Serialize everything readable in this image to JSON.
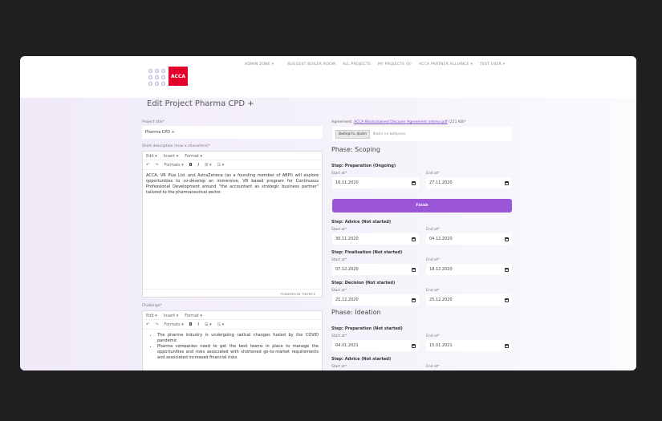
{
  "nav": [
    "ADMIN ZONE ▾",
    "SUGGEST BOILER ROOM",
    "ALL PROJECTS",
    "MY PROJECTS (6)",
    "ACCA PARTNER ALLIANCE ▾",
    "TEST USER ▾"
  ],
  "logo": "ACCA",
  "page_title": "Edit Project Pharma CPD +",
  "project_title_label": "Project title*",
  "project_title_value": "Pharma CPD +",
  "short_desc_label": "Short description (max x characters)*",
  "editor_menu": [
    "Edit ▾",
    "Insert ▾",
    "Format ▾"
  ],
  "editor_tools": {
    "undo": "↶",
    "redo": "↷",
    "formats": "Formats ▾",
    "bold": "B",
    "italic": "I",
    "bullets": "☰ ▾",
    "numbers": "☷ ▾"
  },
  "short_desc_text": "ACCA, VR Plus Ltd. and AstraZeneca (as a founding member of ABPI) will explore opportunities to co-develop an immersive, VR based program for Continuous Professional Development around \"the accountant as strategic business partner\" tailored to the pharmaceutical sector.",
  "powered_by": "POWERED BY TINYMCE",
  "challenge_label": "Challenge*",
  "challenge_items": [
    "The pharma industry is undergoing radical changes fueled by the COVID pandemic",
    "Pharma companies need to get the best teams in place to manage the opportunities and risks associated with shortened go-to-market requirements and associated increased financial risks"
  ],
  "agreement": {
    "label": "Agreement:",
    "link": "ACCA Blockchained Discover Agreement vdemo.pdf",
    "size": "(221 KB)*",
    "choose": "Виберіть файл",
    "no_file": "Файл не вибрано"
  },
  "start_label": "Start at*",
  "end_label": "End at*",
  "finish": "Finish",
  "phases": [
    {
      "title": "Phase: Scoping",
      "steps": [
        {
          "name": "Step: Preparation (Ongoing)",
          "start": "16.11.2020",
          "end": "27.11.2020"
        },
        {
          "name": "Step: Advice (Not started)",
          "start": "30.11.2020",
          "end": "04.12.2020"
        },
        {
          "name": "Step: Finalisation (Not started)",
          "start": "07.12.2020",
          "end": "18.12.2020"
        },
        {
          "name": "Step: Decision (Not started)",
          "start": "21.12.2020",
          "end": "25.12.2020"
        }
      ]
    },
    {
      "title": "Phase: Ideation",
      "steps": [
        {
          "name": "Step: Preparation (Not started)",
          "start": "04.01.2021",
          "end": "15.01.2021"
        },
        {
          "name": "Step: Advice (Not started)",
          "start": "",
          "end": ""
        }
      ]
    }
  ],
  "colors": {
    "accent": "#9b56d8",
    "brand": "#e4002b",
    "background": "#1f1f20"
  }
}
